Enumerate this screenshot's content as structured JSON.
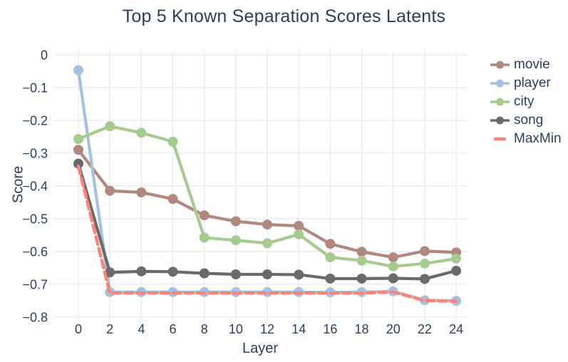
{
  "chart_data": {
    "type": "line",
    "title": "Top 5 Known Separation Scores Latents",
    "xlabel": "Layer",
    "ylabel": "Score",
    "grid": true,
    "legend_position": "right",
    "background_color": "#ffffff",
    "gridline_color": "#e7eaf4",
    "text_color": "#2a3f5f",
    "xlim": [
      -1.63,
      24.72
    ],
    "ylim": [
      -0.807,
      0.015
    ],
    "xticks": [
      0,
      2,
      4,
      6,
      8,
      10,
      12,
      14,
      16,
      18,
      20,
      22,
      24
    ],
    "xtick_labels": [
      "0",
      "2",
      "4",
      "6",
      "8",
      "10",
      "12",
      "14",
      "16",
      "18",
      "20",
      "22",
      "24"
    ],
    "yticks": [
      0,
      -0.1,
      -0.2,
      -0.3,
      -0.4,
      -0.5,
      -0.6,
      -0.7,
      -0.8
    ],
    "ytick_labels": [
      "0",
      "−0.1",
      "−0.2",
      "−0.3",
      "−0.4",
      "−0.5",
      "−0.6",
      "−0.7",
      "−0.8"
    ],
    "x": [
      0,
      2,
      4,
      6,
      8,
      10,
      12,
      14,
      16,
      18,
      20,
      22,
      24
    ],
    "series": [
      {
        "name": "movie",
        "color": "#b0887d",
        "dash": "solid",
        "marker": "circle",
        "values": [
          -0.29,
          -0.415,
          -0.42,
          -0.44,
          -0.49,
          -0.508,
          -0.518,
          -0.522,
          -0.577,
          -0.601,
          -0.618,
          -0.599,
          -0.603
        ]
      },
      {
        "name": "player",
        "color": "#a6c0e0",
        "dash": "solid",
        "marker": "circle",
        "values": [
          -0.047,
          -0.724,
          -0.724,
          -0.724,
          -0.724,
          -0.724,
          -0.724,
          -0.724,
          -0.725,
          -0.724,
          -0.722,
          -0.749,
          -0.751
        ]
      },
      {
        "name": "city",
        "color": "#a5cc8e",
        "dash": "solid",
        "marker": "circle",
        "values": [
          -0.257,
          -0.218,
          -0.238,
          -0.265,
          -0.558,
          -0.566,
          -0.575,
          -0.548,
          -0.618,
          -0.628,
          -0.646,
          -0.637,
          -0.622
        ]
      },
      {
        "name": "song",
        "color": "#6a6a6a",
        "dash": "solid",
        "marker": "circle",
        "values": [
          -0.332,
          -0.664,
          -0.661,
          -0.662,
          -0.667,
          -0.67,
          -0.67,
          -0.671,
          -0.683,
          -0.683,
          -0.682,
          -0.684,
          -0.659
        ]
      },
      {
        "name": "MaxMin",
        "color": "#f98477",
        "dash": "dash",
        "marker": "none",
        "values": [
          -0.34,
          -0.727,
          -0.727,
          -0.727,
          -0.727,
          -0.727,
          -0.727,
          -0.727,
          -0.727,
          -0.727,
          -0.724,
          -0.75,
          -0.752
        ]
      }
    ]
  }
}
